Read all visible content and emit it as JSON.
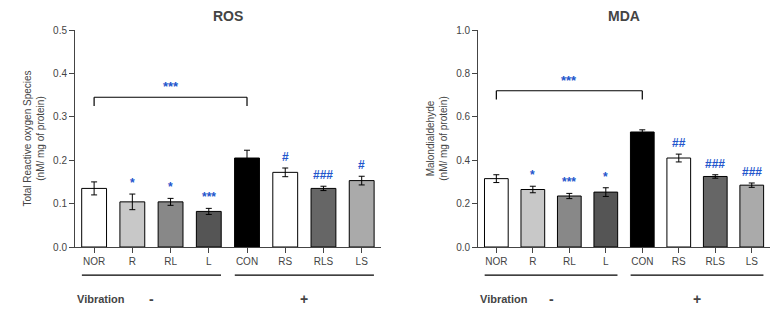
{
  "chart_data": [
    {
      "type": "bar",
      "title": "ROS",
      "ylabel": "Total Reactive oxygen Species\n(nM/ mg of protein)",
      "categories": [
        "NOR",
        "R",
        "RL",
        "L",
        "CON",
        "RS",
        "RLS",
        "LS"
      ],
      "values": [
        0.135,
        0.104,
        0.104,
        0.082,
        0.205,
        0.172,
        0.135,
        0.153
      ],
      "errors": [
        0.015,
        0.018,
        0.008,
        0.007,
        0.018,
        0.01,
        0.005,
        0.01
      ],
      "colors": [
        "white",
        "#c8c8c8",
        "#888888",
        "#555555",
        "black",
        "white",
        "#666666",
        "#aaaaaa"
      ],
      "ylim": [
        0,
        0.5
      ],
      "yticks": [
        {
          "value": 0,
          "label": "0.0"
        },
        0.1,
        0.2,
        0.3,
        0.4,
        0.5
      ],
      "grid": false,
      "annotations": [
        {
          "category": "R",
          "text": "*",
          "color": "#2255cc"
        },
        {
          "category": "RL",
          "text": "*",
          "color": "#2255cc"
        },
        {
          "category": "L",
          "text": "***",
          "color": "#2255cc"
        },
        {
          "category": "RS",
          "text": "#",
          "color": "#2255cc"
        },
        {
          "category": "RLS",
          "text": "###",
          "color": "#2255cc"
        },
        {
          "category": "LS",
          "text": "#",
          "color": "#2255cc"
        }
      ],
      "bracket": {
        "from": "NOR",
        "to": "CON",
        "y": 0.345,
        "drop": 0.02,
        "text": "***",
        "color": "#2255cc"
      },
      "groups": [
        {
          "label": "-",
          "categories": [
            "NOR",
            "R",
            "RL",
            "L"
          ]
        },
        {
          "label": "+",
          "categories": [
            "CON",
            "RS",
            "RLS",
            "LS"
          ]
        }
      ],
      "group_title": "Vibration"
    },
    {
      "type": "bar",
      "title": "MDA",
      "ylabel": "Malondialdehyde\n(nM/ mg of protein)",
      "categories": [
        "NOR",
        "R",
        "RL",
        "L",
        "CON",
        "RS",
        "RLS",
        "LS"
      ],
      "values": [
        0.315,
        0.265,
        0.235,
        0.253,
        0.53,
        0.41,
        0.325,
        0.285
      ],
      "errors": [
        0.018,
        0.015,
        0.012,
        0.02,
        0.01,
        0.018,
        0.008,
        0.01
      ],
      "colors": [
        "white",
        "#c8c8c8",
        "#888888",
        "#555555",
        "black",
        "white",
        "#666666",
        "#aaaaaa"
      ],
      "ylim": [
        0,
        1.0
      ],
      "yticks": [
        {
          "value": 0,
          "label": "0.0"
        },
        0.2,
        0.4,
        0.6,
        0.8,
        {
          "value": 1,
          "label": "1.0"
        }
      ],
      "grid": false,
      "annotations": [
        {
          "category": "R",
          "text": "*",
          "color": "#2255cc"
        },
        {
          "category": "RL",
          "text": "***",
          "color": "#2255cc"
        },
        {
          "category": "L",
          "text": "*",
          "color": "#2255cc"
        },
        {
          "category": "RS",
          "text": "##",
          "color": "#2255cc"
        },
        {
          "category": "RLS",
          "text": "###",
          "color": "#2255cc"
        },
        {
          "category": "LS",
          "text": "###",
          "color": "#2255cc"
        }
      ],
      "bracket": {
        "from": "NOR",
        "to": "CON",
        "y": 0.72,
        "drop": 0.04,
        "text": "***",
        "color": "#2255cc"
      },
      "groups": [
        {
          "label": "-",
          "categories": [
            "NOR",
            "R",
            "RL",
            "L"
          ]
        },
        {
          "label": "+",
          "categories": [
            "CON",
            "RS",
            "RLS",
            "LS"
          ]
        }
      ],
      "group_title": "Vibration"
    }
  ]
}
